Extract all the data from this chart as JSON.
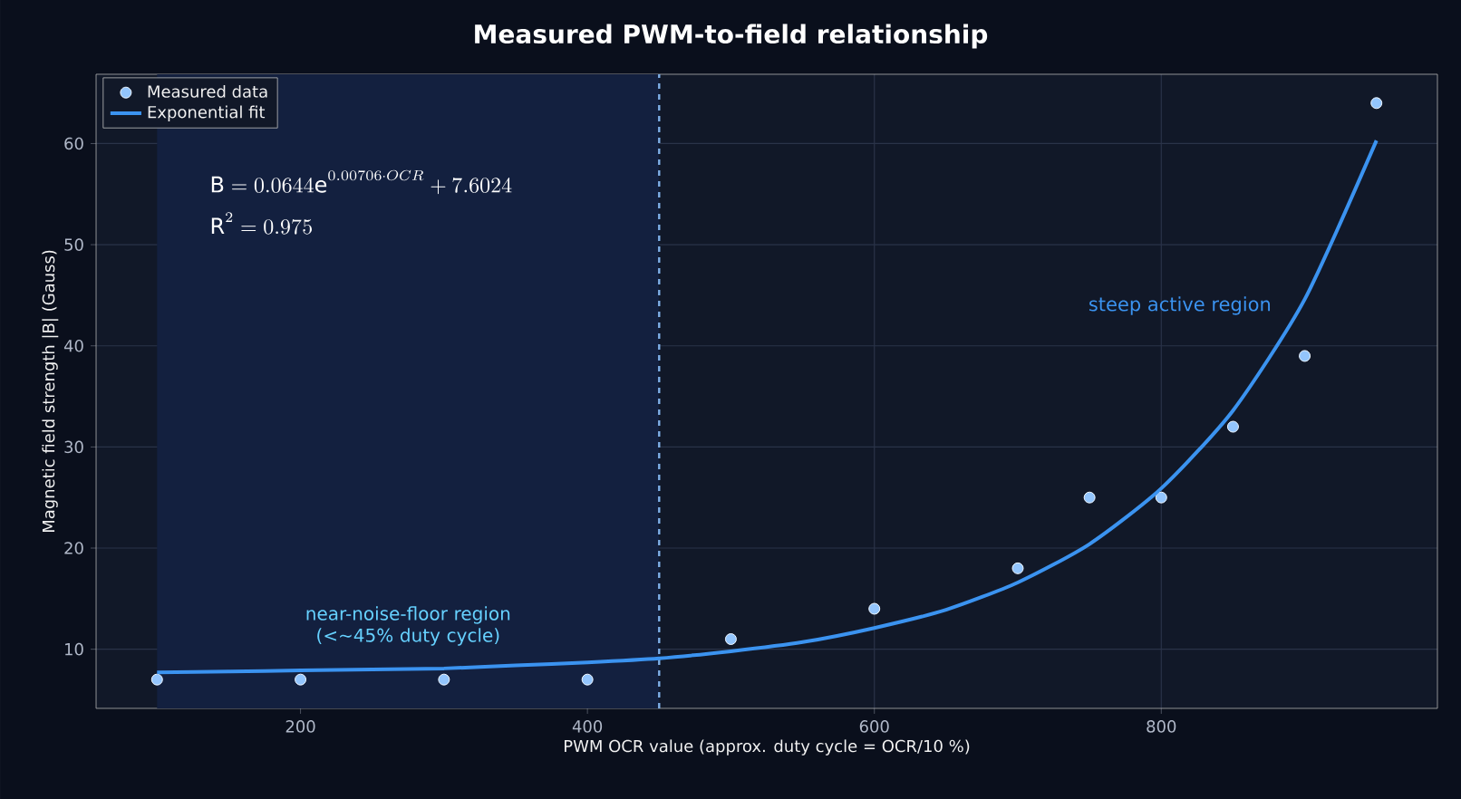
{
  "chart_data": {
    "type": "scatter",
    "title": "Measured PWM-to-field relationship",
    "xlabel": "PWM OCR value (approx. duty cycle = OCR/10 %)",
    "ylabel": "Magnetic field strength |B| (Gauss)",
    "series": [
      {
        "name": "Measured data",
        "marker": "circle",
        "color": "#93c5fd",
        "x": [
          100,
          200,
          300,
          400,
          500,
          600,
          700,
          750,
          800,
          850,
          900,
          950
        ],
        "values": [
          7,
          7,
          7,
          7,
          11,
          14,
          18,
          25,
          25,
          32,
          39,
          64
        ]
      },
      {
        "name": "Exponential fit",
        "type": "line",
        "marker": "none",
        "color": "#3b93f0",
        "x": [
          100,
          150,
          200,
          250,
          300,
          350,
          400,
          450,
          500,
          550,
          600,
          650,
          700,
          750,
          800,
          850,
          900,
          950
        ],
        "values": [
          7.7,
          7.8,
          7.9,
          8,
          8.1,
          8.4,
          8.7,
          9.1,
          9.8,
          10.7,
          12.1,
          13.9,
          16.6,
          20.4,
          25.9,
          33.6,
          44.6,
          60.3
        ]
      }
    ],
    "xlim": [
      57.5,
      992.5
    ],
    "ylim": [
      4.15,
      66.85
    ],
    "xticks": [
      200,
      400,
      600,
      800
    ],
    "yticks": [
      10,
      20,
      30,
      40,
      50,
      60
    ],
    "grid": true,
    "legend": "top left",
    "bands": [
      {
        "axis": "x",
        "from": 100,
        "to": 450,
        "label": "near-noise-floor region (<~45% duty cycle)",
        "color": "#13203f"
      }
    ],
    "ref_lines": [
      {
        "axis": "x",
        "value": 450,
        "color": "#7fb0e8",
        "line_style": "dashed"
      }
    ],
    "annotations": [
      "\\mathrm{B} = 0.0644\\mathrm{e}^{0.00706\\cdot OCR} + 7.6024",
      "\\mathrm{R}^{2} = 0.975",
      "steep active region"
    ]
  }
}
